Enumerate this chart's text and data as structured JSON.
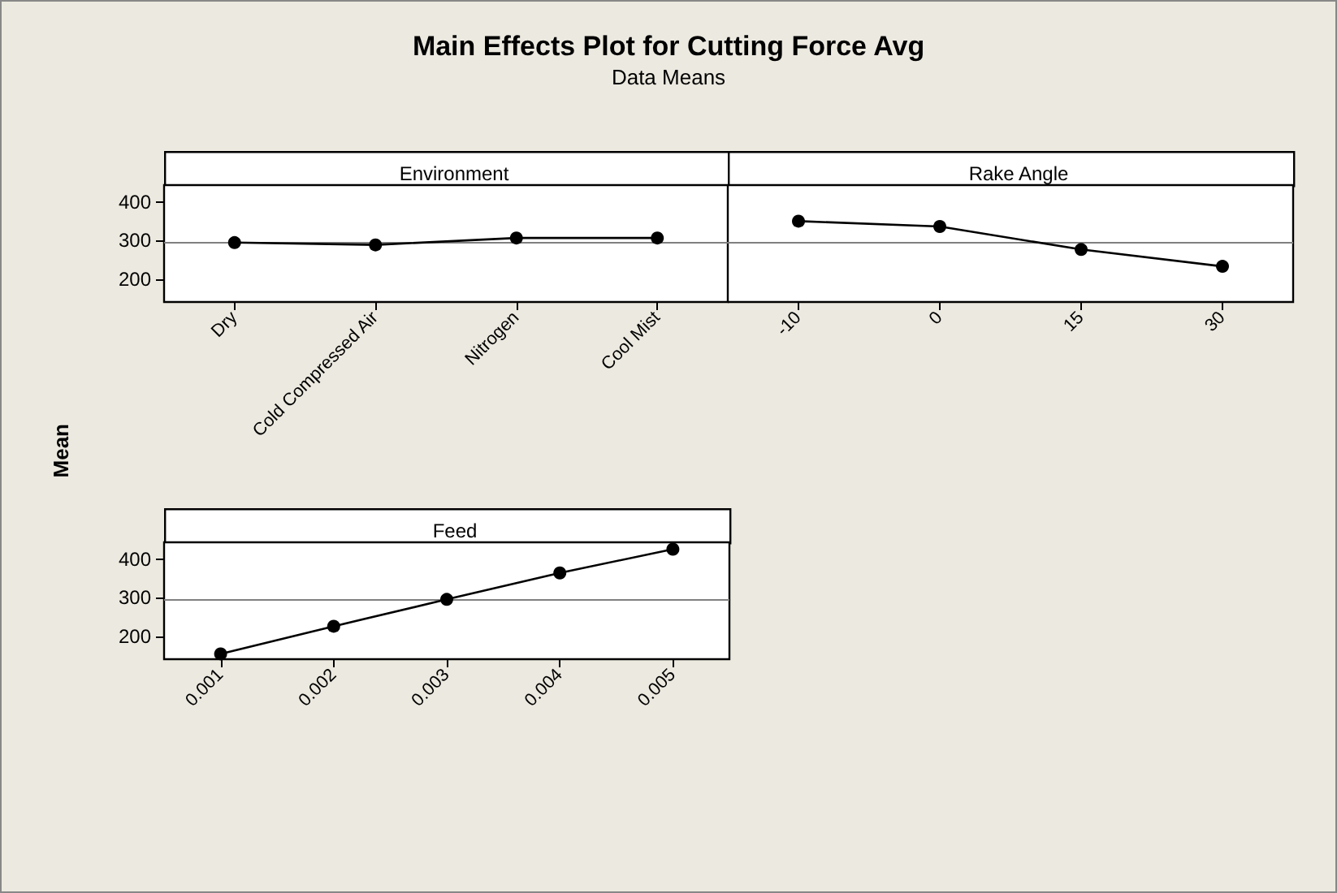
{
  "chart_data": [
    {
      "type": "other",
      "title": "Main Effects Plot for Cutting Force Avg",
      "subtitle": "Data Means",
      "annotations": [
        "Mean"
      ]
    },
    {
      "type": "line",
      "title": "Environment",
      "categories": [
        "Dry",
        "Cold Compressed Air",
        "Nitrogen",
        "Cool Mist"
      ],
      "series": [
        {
          "color": "#000000",
          "values": [
            295,
            289,
            307,
            307
          ]
        }
      ],
      "ylim": [
        140,
        445
      ],
      "yticks": [
        200,
        300,
        400
      ],
      "grid": false,
      "marker": "circle",
      "line_style": "solid",
      "ref_lines": [
        {
          "axis": "y",
          "value": 297,
          "color": "#808080"
        }
      ]
    },
    {
      "type": "line",
      "title": "Rake Angle",
      "categories": [
        "-10",
        "0",
        "15",
        "30"
      ],
      "series": [
        {
          "color": "#000000",
          "values": [
            351,
            337,
            277,
            233
          ]
        }
      ],
      "ylim": [
        140,
        445
      ],
      "yticks": [
        200,
        300,
        400
      ],
      "tick_labels": "x",
      "grid": false,
      "marker": "circle",
      "line_style": "solid",
      "ref_lines": [
        {
          "axis": "y",
          "value": 297,
          "color": "#808080"
        }
      ]
    },
    {
      "type": "line",
      "title": "Feed",
      "categories": [
        "0.001",
        "0.002",
        "0.003",
        "0.004",
        "0.005"
      ],
      "series": [
        {
          "color": "#000000",
          "values": [
            154,
            226,
            296,
            365,
            427
          ]
        }
      ],
      "ylim": [
        140,
        445
      ],
      "yticks": [
        200,
        300,
        400
      ],
      "grid": false,
      "marker": "circle",
      "line_style": "solid",
      "ref_lines": [
        {
          "axis": "y",
          "value": 297,
          "color": "#808080"
        }
      ]
    }
  ]
}
